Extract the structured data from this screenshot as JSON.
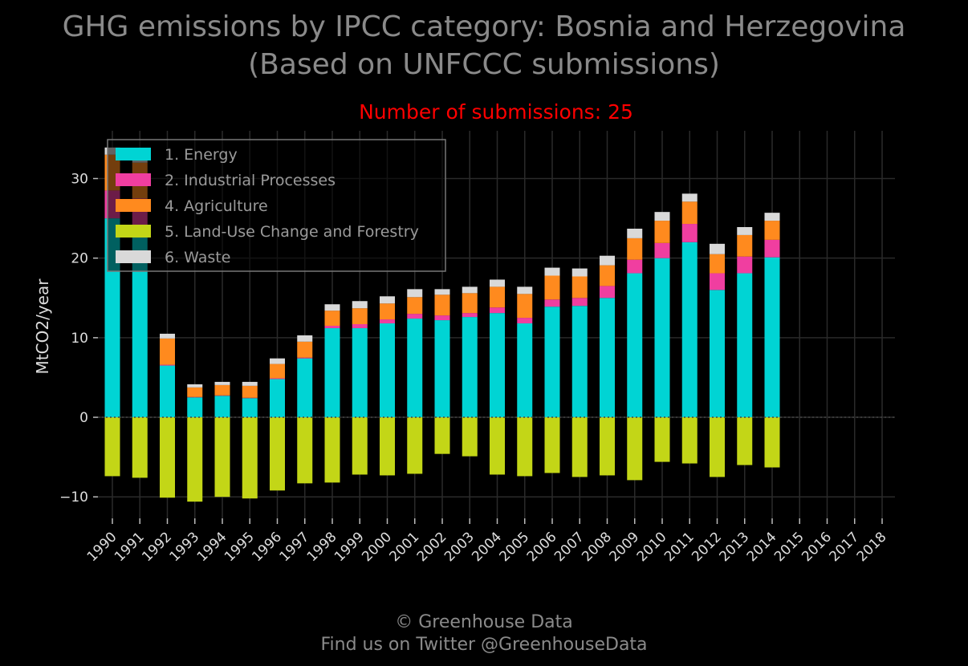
{
  "title_line1": "GHG emissions by IPCC category: Bosnia and Herzegovina",
  "title_line2": "(Based on UNFCCC submissions)",
  "subtitle": "Number of submissions: 25",
  "footer_line1": "© Greenhouse Data",
  "footer_line2": "Find us on Twitter @GreenhouseData",
  "colors": {
    "background": "#000000",
    "grid": "#2a2a2a",
    "energy": "#00d4d4",
    "industrial": "#f03ea0",
    "agriculture": "#ff8a1e",
    "lulucf": "#c3d617",
    "waste": "#d9d9d9"
  },
  "chart_data": {
    "type": "bar",
    "stacked": true,
    "ylabel": "MtCO2/year",
    "xlabel": "",
    "ylim": [
      -12.7,
      36
    ],
    "yticks": [
      -10,
      0,
      10,
      20,
      30
    ],
    "ytick_labels": [
      "−10",
      "0",
      "10",
      "20",
      "30"
    ],
    "grid": true,
    "legend_position": "top-left",
    "categories": [
      "1990",
      "1991",
      "1992",
      "1993",
      "1994",
      "1995",
      "1996",
      "1997",
      "1998",
      "1999",
      "2000",
      "2001",
      "2002",
      "2003",
      "2004",
      "2005",
      "2006",
      "2007",
      "2008",
      "2009",
      "2010",
      "2011",
      "2012",
      "2013",
      "2014",
      "2015",
      "2016",
      "2017",
      "2018"
    ],
    "series": [
      {
        "name": "1. Energy",
        "color_key": "energy",
        "values": [
          25,
          24,
          6.5,
          2.5,
          2.7,
          2.4,
          4.8,
          7.4,
          11.2,
          11.2,
          11.8,
          12.4,
          12.2,
          12.6,
          13.1,
          11.8,
          13.9,
          14.0,
          15.0,
          18.1,
          20.0,
          22.0,
          16.0,
          18.1,
          20.1,
          null,
          null,
          null,
          null
        ]
      },
      {
        "name": "2. Industrial Processes",
        "color_key": "industrial",
        "values": [
          3.5,
          3.5,
          0.1,
          0.05,
          0.05,
          0.05,
          0.1,
          0.1,
          0.3,
          0.5,
          0.5,
          0.6,
          0.6,
          0.5,
          0.7,
          0.7,
          0.9,
          1.0,
          1.5,
          1.7,
          1.9,
          2.3,
          2.1,
          2.1,
          2.2,
          null,
          null,
          null,
          null
        ]
      },
      {
        "name": "4. Agriculture",
        "color_key": "agriculture",
        "values": [
          4.5,
          4.5,
          3.3,
          1.2,
          1.3,
          1.5,
          1.8,
          2.0,
          1.9,
          2.0,
          2.0,
          2.1,
          2.6,
          2.5,
          2.6,
          3.0,
          3.0,
          2.7,
          2.6,
          2.7,
          2.8,
          2.8,
          2.4,
          2.7,
          2.4,
          null,
          null,
          null,
          null
        ]
      },
      {
        "name": "5. Land-Use Change and Forestry",
        "color_key": "lulucf",
        "values": [
          -7.4,
          -7.6,
          -10.1,
          -10.6,
          -10.0,
          -10.2,
          -9.2,
          -8.3,
          -8.2,
          -7.2,
          -7.3,
          -7.1,
          -4.6,
          -4.9,
          -7.2,
          -7.4,
          -7.0,
          -7.5,
          -7.3,
          -7.9,
          -5.6,
          -5.8,
          -7.5,
          -6.0,
          -6.3,
          null,
          null,
          null,
          null
        ]
      },
      {
        "name": "6. Waste",
        "color_key": "waste",
        "values": [
          0.9,
          0.9,
          0.6,
          0.4,
          0.4,
          0.5,
          0.7,
          0.8,
          0.8,
          0.9,
          0.9,
          1.0,
          0.7,
          0.8,
          0.9,
          0.9,
          1.0,
          1.0,
          1.2,
          1.2,
          1.1,
          1.0,
          1.3,
          1.0,
          1.0,
          null,
          null,
          null,
          null
        ]
      }
    ]
  }
}
